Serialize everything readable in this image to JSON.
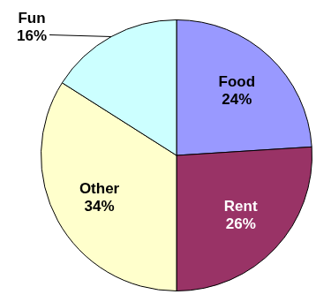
{
  "chart_data": {
    "type": "pie",
    "categories": [
      "Food",
      "Rent",
      "Other",
      "Fun"
    ],
    "values": [
      24,
      26,
      34,
      16
    ],
    "value_labels": [
      "24%",
      "26%",
      "34%",
      "16%"
    ],
    "colors": [
      "#9999ff",
      "#993366",
      "#ffffcc",
      "#ccffff"
    ],
    "data_labels": true,
    "legend": false
  }
}
